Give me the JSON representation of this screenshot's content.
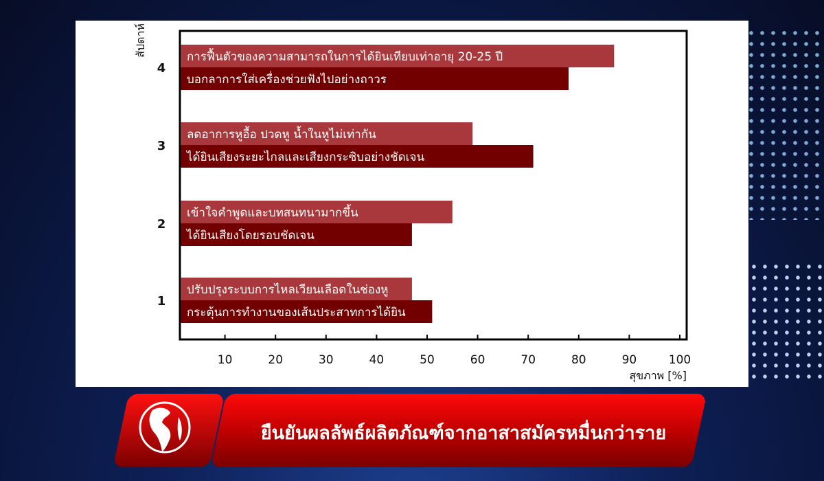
{
  "chart_data": {
    "type": "bar",
    "orientation": "horizontal",
    "ylabel": "สัปดาห์",
    "xlabel": "สุขภาพ [%]",
    "xlim": [
      0,
      100
    ],
    "xticks": [
      "10",
      "20",
      "30",
      "40",
      "50",
      "60",
      "70",
      "80",
      "90",
      "100"
    ],
    "categories": [
      "4",
      "3",
      "2",
      "1"
    ],
    "grid": false,
    "bars": [
      {
        "week": "4",
        "label": "การฟื้นตัวของความสามารถในการได้ยินเทียบเท่าอายุ 20-25 ปี",
        "value": 87,
        "color": "#a8383c"
      },
      {
        "week": "4",
        "label": "บอกลาการใส่เครื่องช่วยฟังไปอย่างถาวร",
        "value": 78,
        "color": "#720000"
      },
      {
        "week": "3",
        "label": "ลดอาการหูอื้อ ปวดหู น้ำในหูไม่เท่ากัน",
        "value": 59,
        "color": "#a8383c"
      },
      {
        "week": "3",
        "label": "ได้ยินเสียงระยะไกลและเสียงกระซิบอย่างชัดเจน",
        "value": 71,
        "color": "#720000"
      },
      {
        "week": "2",
        "label": "เข้าใจคำพูดและบทสนทนามากขึ้น",
        "value": 55,
        "color": "#a8383c"
      },
      {
        "week": "2",
        "label": "ได้ยินเสียงโดยรอบชัดเจน",
        "value": 47,
        "color": "#720000"
      },
      {
        "week": "1",
        "label": "ปรับปรุงระบบการไหลเวียนเลือดในช่องหู",
        "value": 47,
        "color": "#a8383c"
      },
      {
        "week": "1",
        "label": "กระตุ้นการทำงานของเส้นประสาทการได้ยิน",
        "value": 51,
        "color": "#720000"
      }
    ]
  },
  "banner": {
    "headline": "ยืนยันผลลัพธ์ผลิตภัณฑ์จากอาสาสมัครหมื่นกว่าราย",
    "logo_icon": "globe-icon"
  }
}
